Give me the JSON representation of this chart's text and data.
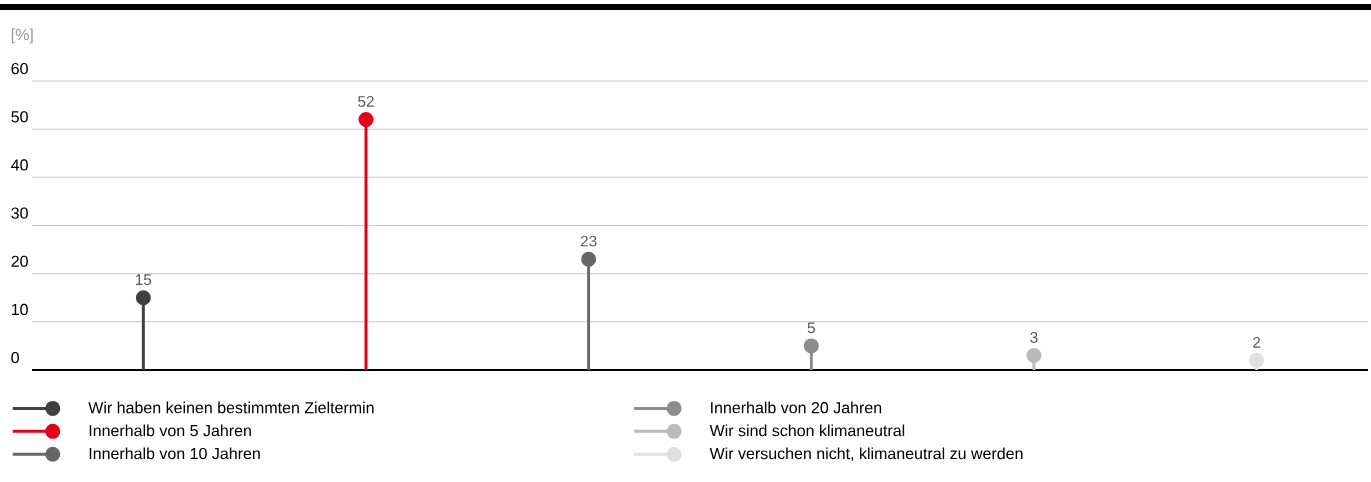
{
  "chart_data": {
    "type": "lollipop",
    "ylabel": "[%]",
    "categories": [
      null,
      null,
      null,
      null,
      null,
      null
    ],
    "series": [
      {
        "name": "Wir haben keinen bestimmten Zieltermin",
        "color": "#404040",
        "values": [
          15,
          null,
          null,
          null,
          null,
          null
        ]
      },
      {
        "name": "Innerhalb von 5 Jahren",
        "color": "#e2001a",
        "values": [
          null,
          52,
          null,
          null,
          null,
          null
        ]
      },
      {
        "name": "Innerhalb von 10 Jahren",
        "color": "#666666",
        "values": [
          null,
          null,
          23,
          null,
          null,
          null
        ]
      },
      {
        "name": "Innerhalb von 20 Jahren",
        "color": "#8c8c8c",
        "values": [
          null,
          null,
          null,
          5,
          null,
          null
        ]
      },
      {
        "name": "Wir sind schon klimaneutral",
        "color": "#bababa",
        "values": [
          null,
          null,
          null,
          null,
          3,
          null
        ]
      },
      {
        "name": "Wir versuchen nicht, klimaneutral zu werden",
        "color": "#e0e0e0",
        "values": [
          null,
          null,
          null,
          null,
          null,
          2
        ]
      }
    ],
    "ylim": [
      0,
      60
    ],
    "yticks": [
      0,
      10,
      20,
      30,
      40,
      50,
      60
    ],
    "grid": "y",
    "legend": "bottom",
    "marker": "circle",
    "data_labels": true,
    "tick_labels": "y"
  }
}
